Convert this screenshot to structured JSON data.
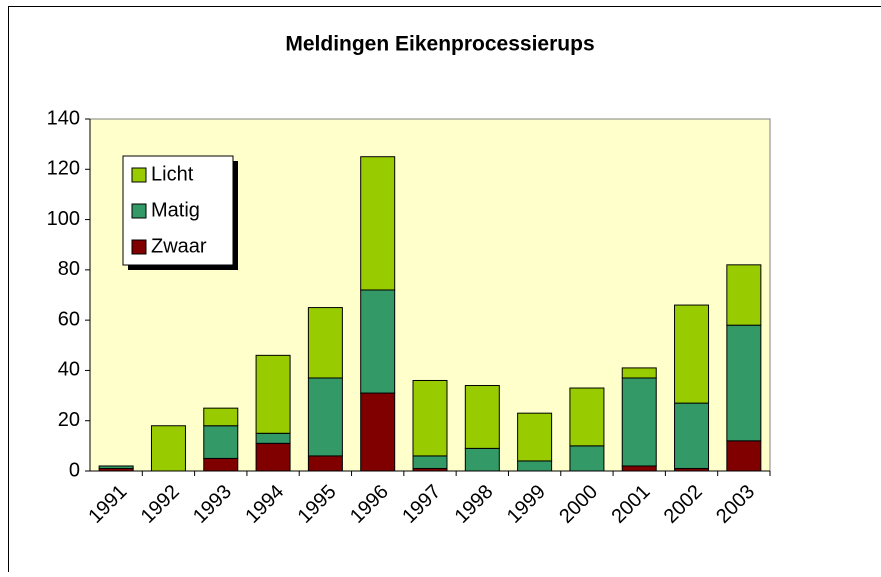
{
  "chart_data": {
    "type": "stacked_bar",
    "title": "Meldingen Eikenprocessierups",
    "categories": [
      "1991",
      "1992",
      "1993",
      "1994",
      "1995",
      "1996",
      "1997",
      "1998",
      "1999",
      "2000",
      "2001",
      "2002",
      "2003"
    ],
    "series": [
      {
        "name": "Zwaar",
        "color": "#800000",
        "values": [
          1,
          0,
          5,
          11,
          6,
          31,
          1,
          0,
          0,
          0,
          2,
          1,
          12
        ]
      },
      {
        "name": "Matig",
        "color": "#339966",
        "values": [
          1,
          0,
          13,
          4,
          31,
          41,
          5,
          9,
          4,
          10,
          35,
          26,
          46
        ]
      },
      {
        "name": "Licht",
        "color": "#99cc00",
        "values": [
          0,
          18,
          7,
          31,
          28,
          53,
          30,
          25,
          19,
          23,
          4,
          39,
          24
        ]
      }
    ],
    "ylim": [
      0,
      140
    ],
    "yticks": [
      0,
      20,
      40,
      60,
      80,
      100,
      120,
      140
    ],
    "grid": false,
    "legend": "top-left"
  }
}
